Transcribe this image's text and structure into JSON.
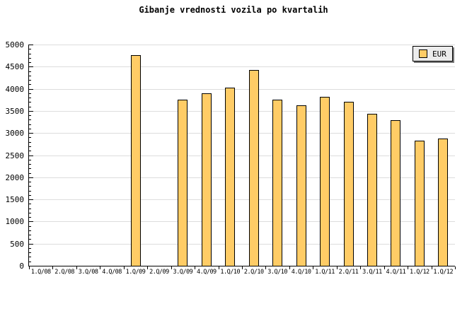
{
  "title": "Gibanje vrednosti vozila po kvartalih",
  "legend": {
    "label": "EUR",
    "position": "top-right"
  },
  "colors": {
    "background": "#FFFFFF",
    "bar_fill": "#FFCC66",
    "bar_border": "#000000",
    "gridline": "#DDDDDD",
    "axis": "#000000",
    "legend_bg": "#ECECEC",
    "legend_shadow": "#777777"
  },
  "chart_data": {
    "type": "bar",
    "title": "Gibanje vrednosti vozila po kvartalih",
    "categories": [
      "1.Q/08",
      "2.Q/08",
      "3.Q/08",
      "4.Q/08",
      "1.Q/09",
      "2.Q/09",
      "3.Q/09",
      "4.Q/09",
      "1.Q/10",
      "2.Q/10",
      "3.Q/10",
      "4.Q/10",
      "1.Q/11",
      "2.Q/11",
      "3.Q/11",
      "4.Q/11",
      "1.Q/12",
      "1.Q/12"
    ],
    "series": [
      {
        "name": "EUR",
        "values": [
          null,
          null,
          null,
          null,
          4760,
          null,
          3750,
          3890,
          4030,
          4420,
          3760,
          3620,
          3820,
          3700,
          3440,
          3290,
          2830,
          2880
        ]
      }
    ],
    "xlabel": "",
    "ylabel": "",
    "ylim": [
      0,
      5000
    ],
    "yticks": [
      0,
      500,
      1000,
      1500,
      2000,
      2500,
      3000,
      3500,
      4000,
      4500,
      5000
    ],
    "ytick_minor_interval": 100,
    "grid": "horizontal",
    "legend_position": "top-right"
  }
}
